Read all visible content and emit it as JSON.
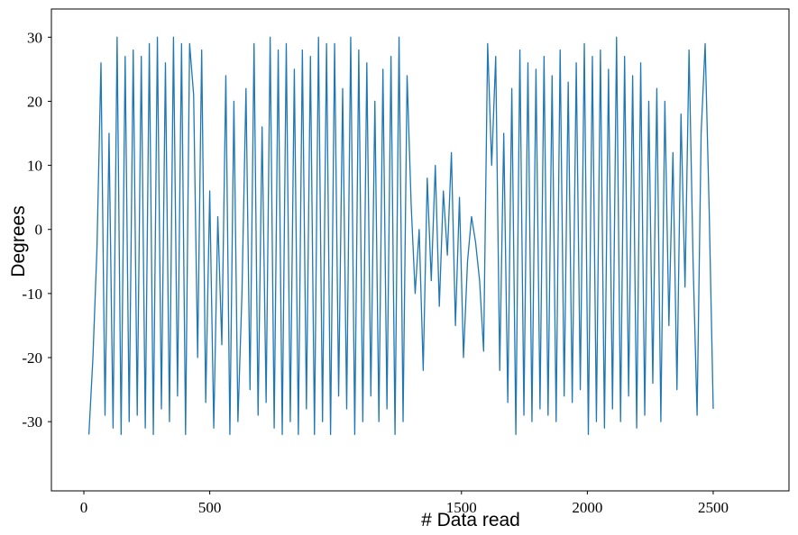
{
  "chart_data": {
    "type": "line",
    "xlabel": "# Data read",
    "ylabel": "Degrees",
    "color": "#1f77b4",
    "xlim": [
      -129,
      2801
    ],
    "ylim": [
      -40.8,
      34.4
    ],
    "xticks": [
      0,
      500,
      1500,
      2000,
      2500
    ],
    "yticks": [
      -30,
      -20,
      -10,
      0,
      10,
      20,
      30
    ],
    "x": [
      20,
      36,
      52,
      68,
      84,
      100,
      116,
      132,
      148,
      164,
      180,
      196,
      212,
      228,
      244,
      260,
      276,
      292,
      308,
      324,
      340,
      356,
      372,
      388,
      404,
      420,
      436,
      452,
      468,
      484,
      500,
      516,
      532,
      548,
      564,
      580,
      596,
      612,
      628,
      644,
      660,
      676,
      692,
      708,
      724,
      740,
      756,
      772,
      788,
      804,
      820,
      836,
      852,
      868,
      884,
      900,
      916,
      932,
      948,
      964,
      980,
      996,
      1012,
      1028,
      1044,
      1060,
      1076,
      1092,
      1108,
      1124,
      1140,
      1156,
      1172,
      1188,
      1204,
      1220,
      1236,
      1252,
      1268,
      1284,
      1300,
      1316,
      1332,
      1348,
      1364,
      1380,
      1396,
      1412,
      1428,
      1444,
      1460,
      1476,
      1492,
      1508,
      1524,
      1540,
      1556,
      1572,
      1588,
      1604,
      1620,
      1636,
      1652,
      1668,
      1684,
      1700,
      1716,
      1732,
      1748,
      1764,
      1780,
      1796,
      1812,
      1828,
      1844,
      1860,
      1876,
      1892,
      1908,
      1924,
      1940,
      1956,
      1972,
      1988,
      2004,
      2020,
      2036,
      2052,
      2068,
      2084,
      2100,
      2116,
      2132,
      2148,
      2164,
      2180,
      2196,
      2212,
      2228,
      2244,
      2260,
      2276,
      2292,
      2308,
      2324,
      2340,
      2356,
      2372,
      2388,
      2404,
      2420,
      2436,
      2452,
      2468,
      2484,
      2500
    ],
    "values": [
      -32,
      -20,
      -3,
      26,
      -29,
      15,
      -31,
      30,
      -32,
      27,
      -30,
      28,
      -29,
      27,
      -31,
      29,
      -32,
      30,
      -28,
      26,
      -30,
      30,
      -26,
      29,
      -32,
      29,
      21,
      -20,
      28,
      -27,
      6,
      -31,
      2,
      -18,
      24,
      -32,
      20,
      -30,
      -10,
      22,
      -25,
      29,
      -29,
      16,
      -27,
      30,
      -31,
      28,
      -32,
      29,
      -30,
      25,
      -32,
      28,
      -28,
      27,
      -32,
      30,
      -30,
      29,
      -32,
      29,
      -26,
      22,
      -28,
      30,
      -32,
      28,
      -30,
      26,
      -26,
      20,
      -30,
      25,
      -28,
      27,
      -32,
      30,
      -30,
      24,
      4,
      -10,
      0,
      -22,
      8,
      -8,
      10,
      -12,
      6,
      -4,
      12,
      -15,
      5,
      -20,
      -5,
      2,
      -2,
      -8,
      -19,
      29,
      10,
      27,
      -22,
      15,
      -27,
      22,
      -32,
      28,
      -29,
      26,
      -30,
      25,
      -28,
      27,
      -29,
      24,
      -30,
      28,
      -26,
      23,
      -27,
      26,
      -25,
      29,
      -32,
      27,
      -30,
      28,
      -31,
      25,
      -28,
      30,
      -30,
      27,
      -26,
      24,
      -31,
      26,
      -29,
      20,
      -24,
      22,
      -30,
      20,
      -15,
      12,
      -25,
      18,
      -9,
      28,
      -5,
      -29,
      15,
      29,
      3,
      -28
    ]
  }
}
